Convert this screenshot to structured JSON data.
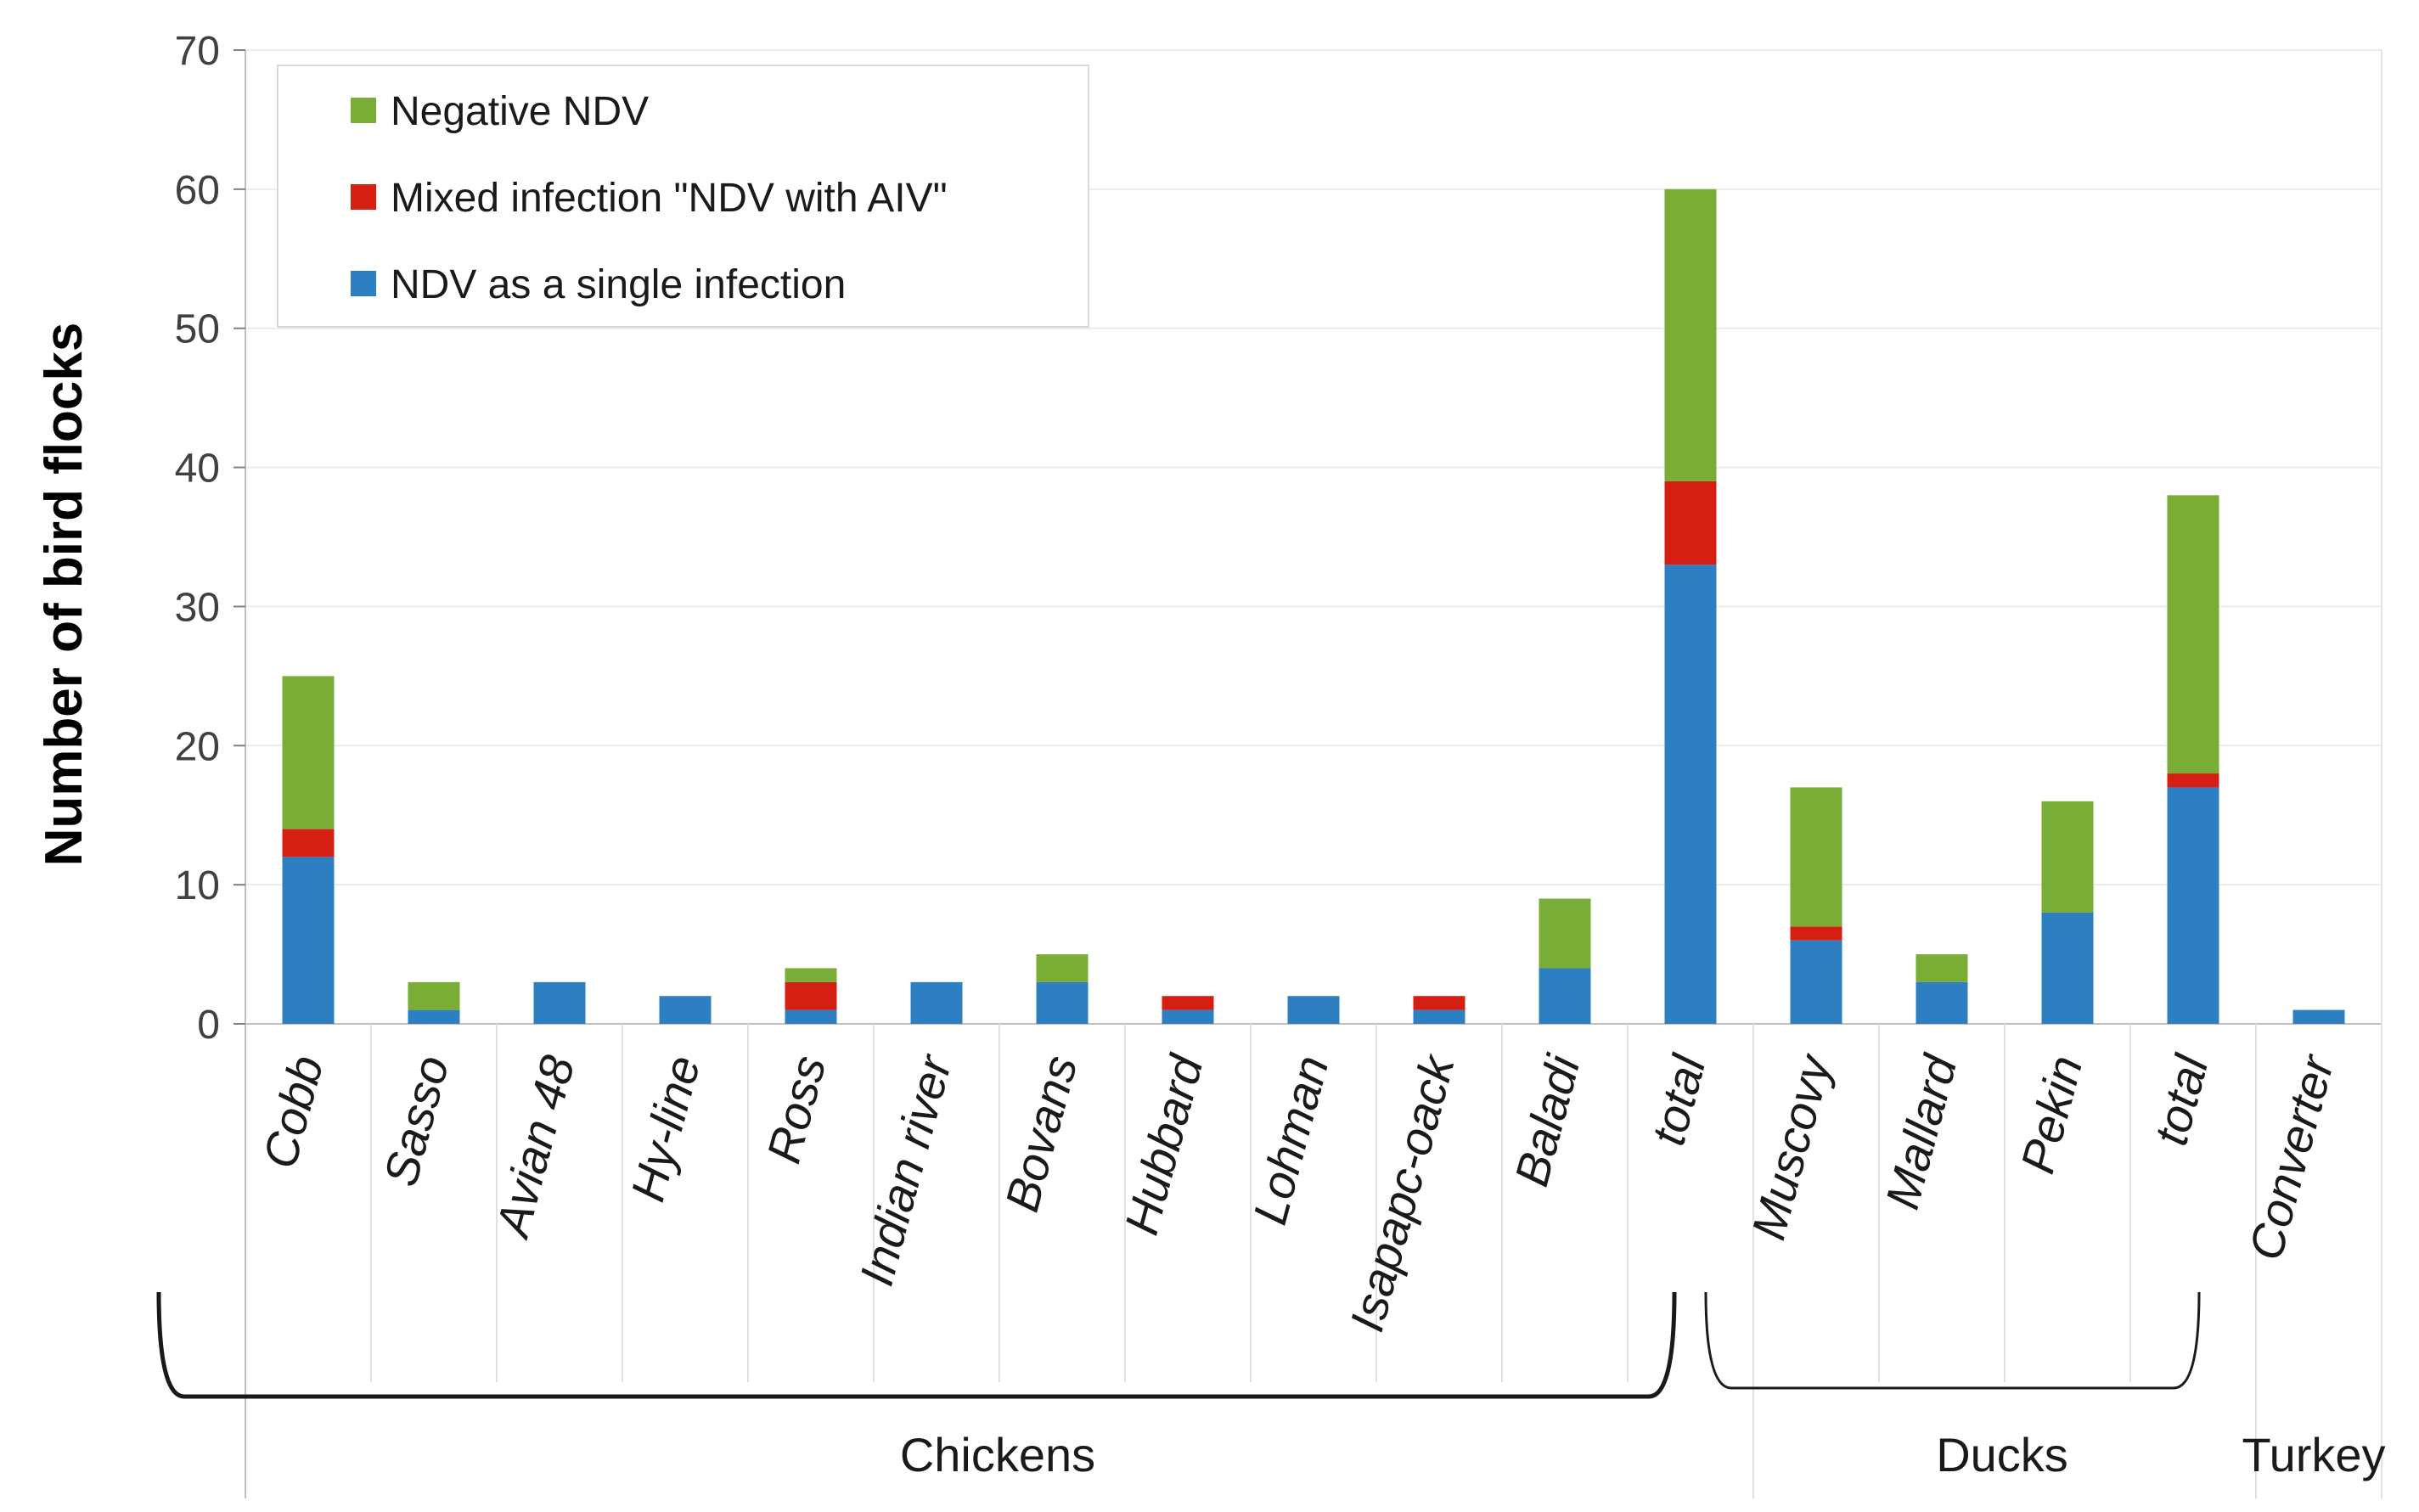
{
  "chart_data": {
    "type": "bar",
    "stacked": true,
    "title": "",
    "xlabel": "",
    "ylabel": "Number of bird flocks",
    "ylim": [
      0,
      70
    ],
    "yticks": [
      0,
      10,
      20,
      30,
      40,
      50,
      60,
      70
    ],
    "grid": true,
    "legend_position": "top-left",
    "categories": [
      "Cobb",
      "Sasso",
      "Avian 48",
      "Hy-line",
      "Ross",
      "Indian river",
      "Bovans",
      "Hubbard",
      "Lohman",
      "Isapapc-oack",
      "Baladi",
      "total",
      "Muscovy",
      "Mallard",
      "Pekin",
      "total",
      "Converter"
    ],
    "groups": [
      {
        "label": "Chickens",
        "first": 0,
        "last": 11
      },
      {
        "label": "Ducks",
        "first": 12,
        "last": 15
      },
      {
        "label": "Turkey",
        "first": 16,
        "last": 16
      }
    ],
    "series": [
      {
        "name": "NDV as a single infection",
        "color": "#2e7fc1",
        "values": [
          12,
          1,
          3,
          2,
          1,
          3,
          3,
          1,
          2,
          1,
          4,
          33,
          6,
          3,
          8,
          17,
          1
        ]
      },
      {
        "name": "Mixed infection \"NDV with AIV\"",
        "color": "#d41f12",
        "values": [
          2,
          0,
          0,
          0,
          2,
          0,
          0,
          1,
          0,
          1,
          0,
          6,
          1,
          0,
          0,
          1,
          0
        ]
      },
      {
        "name": "Negative NDV",
        "color": "#7aad36",
        "values": [
          11,
          2,
          0,
          0,
          1,
          0,
          2,
          0,
          0,
          0,
          5,
          21,
          10,
          2,
          8,
          20,
          0
        ]
      }
    ],
    "legend_order": [
      "Negative NDV",
      "Mixed infection \"NDV with AIV\"",
      "NDV as a single infection"
    ]
  }
}
